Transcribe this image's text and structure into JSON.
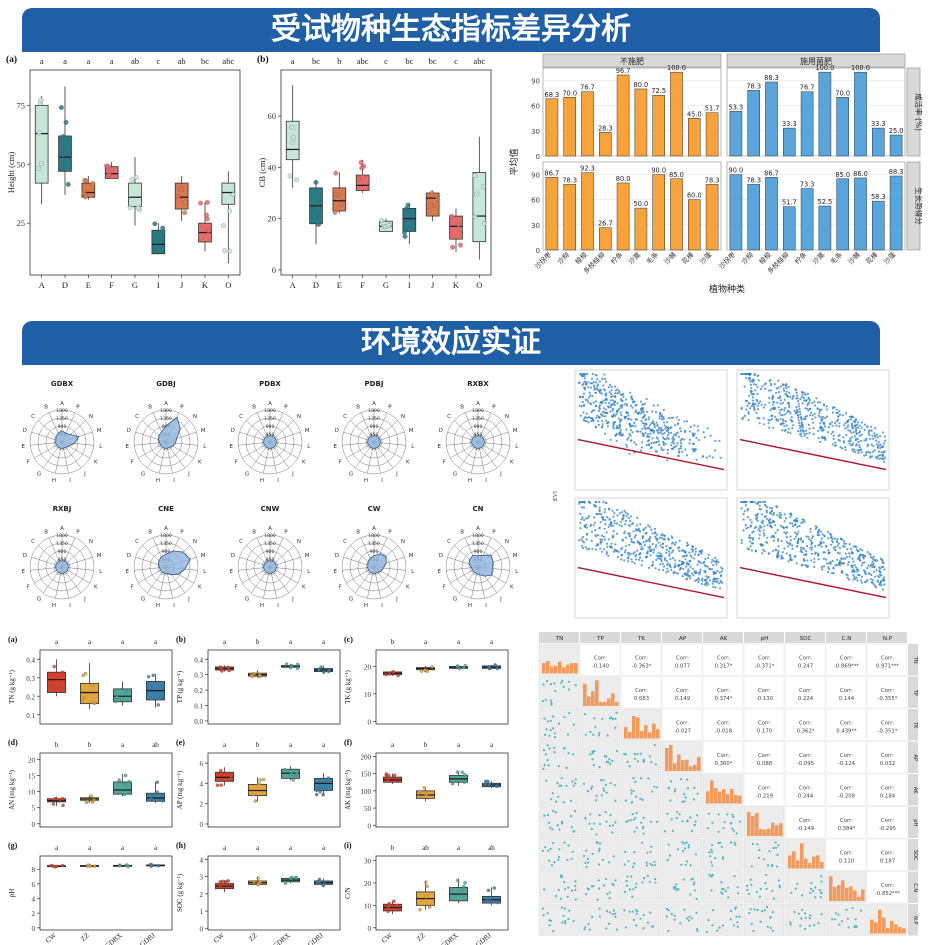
{
  "banners": {
    "top": "受试物种生态指标差异分析",
    "middle": "环境效应实证"
  },
  "chart_data": [
    {
      "id": "height",
      "type": "box",
      "panel_label": "(a)",
      "ylabel": "Height (cm)",
      "categories": [
        "A",
        "D",
        "E",
        "F",
        "G",
        "I",
        "J",
        "K",
        "O"
      ],
      "letters": [
        "a",
        "a",
        "a",
        "a",
        "ab",
        "c",
        "ab",
        "bc",
        "abc"
      ],
      "yticks": [
        25,
        50,
        75
      ],
      "ylim": [
        3,
        90
      ],
      "colors": [
        "#c7e6da",
        "#2a7a85",
        "#d9794f",
        "#e56b6b",
        "#c7e6da",
        "#2a7a85",
        "#d9794f",
        "#e56b6b",
        "#c7e6da"
      ],
      "boxes": [
        {
          "min": 33,
          "q1": 42,
          "med": 63,
          "q3": 75,
          "max": 79
        },
        {
          "min": 37,
          "q1": 47,
          "med": 53,
          "q3": 62,
          "max": 83
        },
        {
          "min": 35,
          "q1": 36,
          "med": 38,
          "q3": 42,
          "max": 45
        },
        {
          "min": 44,
          "q1": 44,
          "med": 46,
          "q3": 49,
          "max": 51
        },
        {
          "min": 24,
          "q1": 32,
          "med": 36,
          "q3": 42,
          "max": 53
        },
        {
          "min": 12,
          "q1": 12,
          "med": 16,
          "q3": 22,
          "max": 25
        },
        {
          "min": 26,
          "q1": 31,
          "med": 36,
          "q3": 42,
          "max": 45
        },
        {
          "min": 13,
          "q1": 17,
          "med": 21,
          "q3": 25,
          "max": 34
        },
        {
          "min": 8,
          "q1": 33,
          "med": 38,
          "q3": 42,
          "max": 47
        }
      ]
    },
    {
      "id": "cb",
      "type": "box",
      "panel_label": "(b)",
      "ylabel": "CB (cm)",
      "categories": [
        "A",
        "D",
        "E",
        "F",
        "G",
        "I",
        "J",
        "K",
        "O"
      ],
      "letters": [
        "a",
        "bc",
        "b",
        "abc",
        "c",
        "bc",
        "bc",
        "c",
        "abc"
      ],
      "yticks": [
        0,
        20,
        40,
        60
      ],
      "ylim": [
        -2,
        78
      ],
      "colors": [
        "#c7e6da",
        "#2a7a85",
        "#d9794f",
        "#e56b6b",
        "#c7e6da",
        "#2a7a85",
        "#d9794f",
        "#e56b6b",
        "#c7e6da"
      ],
      "boxes": [
        {
          "min": 32,
          "q1": 43,
          "med": 47,
          "q3": 58,
          "max": 72
        },
        {
          "min": 10,
          "q1": 18,
          "med": 25,
          "q3": 32,
          "max": 35
        },
        {
          "min": 22,
          "q1": 23,
          "med": 27,
          "q3": 32,
          "max": 38
        },
        {
          "min": 30,
          "q1": 31,
          "med": 33,
          "q3": 37,
          "max": 43
        },
        {
          "min": 15,
          "q1": 15,
          "med": 17,
          "q3": 19,
          "max": 20
        },
        {
          "min": 10,
          "q1": 15,
          "med": 20,
          "q3": 24,
          "max": 26
        },
        {
          "min": 19,
          "q1": 21,
          "med": 28,
          "q3": 30,
          "max": 31
        },
        {
          "min": 7,
          "q1": 12,
          "med": 17,
          "q3": 21,
          "max": 24
        },
        {
          "min": 4,
          "q1": 11,
          "med": 21,
          "q3": 38,
          "max": 52
        }
      ]
    },
    {
      "id": "bars",
      "type": "bar",
      "ylabel": "平均值",
      "xlabel": "植物种类",
      "columns": [
        "不施肥",
        "施用菌肥"
      ],
      "rows": [
        "成活率 (%)",
        "生长势得分"
      ],
      "categories": [
        "沙拐枣",
        "沙柳",
        "梭梭",
        "多枝柽柳",
        "柠条",
        "沙蒿",
        "毛条",
        "沙棘",
        "花棒",
        "沙蓬"
      ],
      "yticks": [
        0,
        30,
        60,
        90
      ],
      "ylim": [
        0,
        105
      ],
      "values": [
        [
          [
            68.3,
            70.0,
            76.7,
            28.3,
            96.7,
            80.0,
            72.5,
            100.0,
            45.0,
            51.7
          ],
          [
            53.3,
            78.3,
            88.3,
            33.3,
            76.7,
            100.0,
            70.0,
            100.0,
            33.3,
            25.0
          ]
        ],
        [
          [
            86.7,
            78.3,
            92.3,
            26.7,
            80.0,
            50.0,
            90.0,
            85.0,
            60.0,
            78.3
          ],
          [
            90.0,
            78.3,
            86.7,
            51.7,
            73.3,
            52.5,
            85.0,
            86.0,
            58.3,
            88.3
          ]
        ]
      ],
      "value_labels": [
        [
          [
            "68.3",
            "70.0",
            "76.7",
            "28.3",
            "96.7",
            "80.0",
            "72.5",
            "100.0",
            "45.0",
            "51.7"
          ],
          [
            "53.3",
            "78.3",
            "88.3",
            "33.3",
            "76.7",
            "100.0",
            "70.0",
            "100.0",
            "33.3",
            "25.0"
          ]
        ],
        [
          [
            "86.7",
            "78.3",
            "92.3",
            "26.7",
            "80.0",
            "50.0",
            "90.0",
            "85.0",
            "60.0",
            "78.3"
          ],
          [
            "90.0",
            "78.3",
            "86.7",
            "51.7",
            "73.3",
            "52.5",
            "85.0",
            "86.0",
            "58.3",
            "88.3"
          ]
        ]
      ],
      "colors": [
        "#f5a33a",
        "#5aa6dc"
      ]
    },
    {
      "id": "radar",
      "type": "radar",
      "directions": [
        "A",
        "P",
        "N",
        "M",
        "L",
        "K",
        "J",
        "I",
        "H",
        "G",
        "F",
        "E",
        "D",
        "C",
        "B"
      ],
      "ring_labels": [
        "1800",
        "1350",
        "900",
        "450"
      ],
      "sites": [
        "GDBX",
        "GDBJ",
        "PDBX",
        "PDBJ",
        "RXBX",
        "RXBJ",
        "CNE",
        "CNW",
        "CW",
        "CN"
      ],
      "color": "#8fb4df"
    },
    {
      "id": "scatter",
      "type": "scatter",
      "ylabel": "EVI",
      "color": "#2f7fc4",
      "fit_color": "#b0182a"
    },
    {
      "id": "soil",
      "type": "box",
      "categories": [
        "CW",
        "ZZ",
        "GDBX",
        "GDBJ"
      ],
      "colors": [
        "#d6402a",
        "#e2a43d",
        "#4fa79b",
        "#3c7fa8"
      ],
      "panels": [
        {
          "label": "(a)",
          "ylabel": "TN (g kg⁻¹)",
          "letters": [
            "a",
            "a",
            "a",
            "a"
          ],
          "yticks": [
            "0.1",
            "0.2",
            "0.3",
            "0.4"
          ],
          "ylim": [
            0.05,
            0.45
          ],
          "boxes": [
            {
              "min": 0.2,
              "q1": 0.22,
              "med": 0.29,
              "q3": 0.33,
              "max": 0.4
            },
            {
              "min": 0.13,
              "q1": 0.16,
              "med": 0.22,
              "q3": 0.27,
              "max": 0.38
            },
            {
              "min": 0.15,
              "q1": 0.17,
              "med": 0.2,
              "q3": 0.24,
              "max": 0.28
            },
            {
              "min": 0.14,
              "q1": 0.18,
              "med": 0.23,
              "q3": 0.28,
              "max": 0.32
            }
          ]
        },
        {
          "label": "(b)",
          "ylabel": "TP (g kg⁻¹)",
          "letters": [
            "a",
            "b",
            "a",
            "a"
          ],
          "yticks": [
            "0.0",
            "0.1",
            "0.2",
            "0.3",
            "0.4"
          ],
          "ylim": [
            -0.02,
            0.46
          ],
          "boxes": [
            {
              "min": 0.32,
              "q1": 0.33,
              "med": 0.34,
              "q3": 0.35,
              "max": 0.36
            },
            {
              "min": 0.28,
              "q1": 0.29,
              "med": 0.3,
              "q3": 0.31,
              "max": 0.33
            },
            {
              "min": 0.34,
              "q1": 0.35,
              "med": 0.35,
              "q3": 0.36,
              "max": 0.37
            },
            {
              "min": 0.31,
              "q1": 0.32,
              "med": 0.33,
              "q3": 0.34,
              "max": 0.36
            }
          ]
        },
        {
          "label": "(c)",
          "ylabel": "TK (g kg⁻¹)",
          "letters": [
            "b",
            "a",
            "a",
            "a"
          ],
          "yticks": [
            "0",
            "10",
            "20"
          ],
          "ylim": [
            -1,
            26
          ],
          "boxes": [
            {
              "min": 16.5,
              "q1": 17,
              "med": 17.5,
              "q3": 18,
              "max": 18.3
            },
            {
              "min": 18,
              "q1": 18.8,
              "med": 19.2,
              "q3": 19.6,
              "max": 20.2
            },
            {
              "min": 19,
              "q1": 19.3,
              "med": 19.7,
              "q3": 20,
              "max": 20.5
            },
            {
              "min": 19,
              "q1": 19.3,
              "med": 19.7,
              "q3": 20.2,
              "max": 20.6
            }
          ]
        },
        {
          "label": "(d)",
          "ylabel": "AN (mg kg⁻¹)",
          "letters": [
            "b",
            "b",
            "a",
            "ab"
          ],
          "yticks": [
            "0",
            "5",
            "10",
            "15",
            "20"
          ],
          "ylim": [
            -1,
            22
          ],
          "boxes": [
            {
              "min": 5.5,
              "q1": 6.8,
              "med": 7.2,
              "q3": 7.8,
              "max": 8.5
            },
            {
              "min": 6.5,
              "q1": 7.3,
              "med": 7.7,
              "q3": 8.1,
              "max": 8.8
            },
            {
              "min": 8.5,
              "q1": 9.2,
              "med": 10.5,
              "q3": 13,
              "max": 15.5
            },
            {
              "min": 6.5,
              "q1": 7,
              "med": 8,
              "q3": 9.5,
              "max": 13
            }
          ]
        },
        {
          "label": "(e)",
          "ylabel": "AP (mg kg⁻¹)",
          "letters": [
            "a",
            "b",
            "a",
            "a"
          ],
          "yticks": [
            "0",
            "2",
            "4",
            "6"
          ],
          "ylim": [
            -0.3,
            7
          ],
          "boxes": [
            {
              "min": 3.8,
              "q1": 4.2,
              "med": 4.6,
              "q3": 5.1,
              "max": 5.6
            },
            {
              "min": 2.2,
              "q1": 2.8,
              "med": 3.3,
              "q3": 3.9,
              "max": 4.6
            },
            {
              "min": 4.3,
              "q1": 4.5,
              "med": 5,
              "q3": 5.4,
              "max": 5.7
            },
            {
              "min": 2.8,
              "q1": 3.3,
              "med": 4,
              "q3": 4.5,
              "max": 5
            }
          ]
        },
        {
          "label": "(f)",
          "ylabel": "AK (mg kg⁻¹)",
          "letters": [
            "a",
            "b",
            "a",
            "a"
          ],
          "yticks": [
            "0",
            "50",
            "100",
            "150",
            "200"
          ],
          "ylim": [
            -5,
            210
          ],
          "boxes": [
            {
              "min": 120,
              "q1": 125,
              "med": 132,
              "q3": 140,
              "max": 150
            },
            {
              "min": 70,
              "q1": 78,
              "med": 88,
              "q3": 100,
              "max": 110
            },
            {
              "min": 115,
              "q1": 125,
              "med": 135,
              "q3": 145,
              "max": 155
            },
            {
              "min": 108,
              "q1": 112,
              "med": 117,
              "q3": 122,
              "max": 128
            }
          ]
        },
        {
          "label": "(g)",
          "ylabel": "pH",
          "letters": [
            "a",
            "a",
            "a",
            "a"
          ],
          "yticks": [
            "0",
            "2",
            "4",
            "6",
            "8"
          ],
          "ylim": [
            -0.3,
            9.8
          ],
          "boxes": [
            {
              "min": 8.3,
              "q1": 8.38,
              "med": 8.43,
              "q3": 8.48,
              "max": 8.52
            },
            {
              "min": 8.33,
              "q1": 8.4,
              "med": 8.45,
              "q3": 8.5,
              "max": 8.55
            },
            {
              "min": 8.35,
              "q1": 8.42,
              "med": 8.47,
              "q3": 8.52,
              "max": 8.57
            },
            {
              "min": 8.4,
              "q1": 8.47,
              "med": 8.52,
              "q3": 8.58,
              "max": 8.65
            }
          ]
        },
        {
          "label": "(h)",
          "ylabel": "SOC (g kg⁻¹)",
          "letters": [
            "a",
            "a",
            "a",
            "a"
          ],
          "yticks": [
            "0",
            "1",
            "2",
            "3",
            "4"
          ],
          "ylim": [
            -0.1,
            4.2
          ],
          "boxes": [
            {
              "min": 2.1,
              "q1": 2.3,
              "med": 2.45,
              "q3": 2.6,
              "max": 2.8
            },
            {
              "min": 2.45,
              "q1": 2.55,
              "med": 2.65,
              "q3": 2.75,
              "max": 3
            },
            {
              "min": 2.6,
              "q1": 2.7,
              "med": 2.8,
              "q3": 2.9,
              "max": 3
            },
            {
              "min": 2.4,
              "q1": 2.55,
              "med": 2.65,
              "q3": 2.75,
              "max": 2.9
            }
          ]
        },
        {
          "label": "(i)",
          "ylabel": "C/N",
          "letters": [
            "b",
            "ab",
            "a",
            "ab"
          ],
          "yticks": [
            "0",
            "10",
            "20",
            "30"
          ],
          "ylim": [
            -1,
            32
          ],
          "boxes": [
            {
              "min": 6,
              "q1": 7.5,
              "med": 9,
              "q3": 10.5,
              "max": 12
            },
            {
              "min": 8,
              "q1": 10,
              "med": 13,
              "q3": 16,
              "max": 21
            },
            {
              "min": 11,
              "q1": 12,
              "med": 15,
              "q3": 18,
              "max": 22
            },
            {
              "min": 10,
              "q1": 11,
              "med": 12.5,
              "q3": 14,
              "max": 18
            }
          ]
        }
      ]
    },
    {
      "id": "corr",
      "type": "pairs",
      "variables": [
        "TN",
        "TP",
        "TK",
        "AP",
        "AK",
        "pH",
        "SOC",
        "C.N",
        "N.P"
      ],
      "corr_prefix": "Corr:",
      "corr": [
        [
          "-0.140",
          "-0.363*",
          "0.077",
          "0.317*",
          "-0.371*",
          "0.247",
          "-0.869***",
          "0.971***"
        ],
        [
          "0.083",
          "0.149",
          "0.374*",
          "-0.130",
          "0.224",
          "0.144",
          "-0.355*"
        ],
        [
          "-0.027",
          "-0.018",
          "0.170",
          "0.362*",
          "0.439**",
          "-0.351*"
        ],
        [
          "0.360*",
          "0.088",
          "-0.095",
          "-0.124",
          "0.032"
        ],
        [
          "-0.219",
          "0.244",
          "-0.208",
          "0.184"
        ],
        [
          "-0.149",
          "0.384*",
          "-0.295"
        ],
        [
          "0.110",
          "0.187"
        ],
        [
          "-0.852***"
        ]
      ],
      "hist_color": "#f29b5e",
      "point_color": "#4fb8bd"
    }
  ]
}
